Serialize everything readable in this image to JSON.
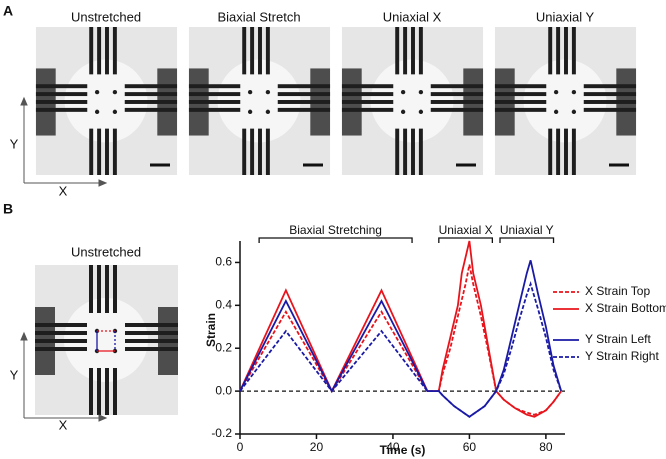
{
  "panel_a": {
    "label": "A",
    "titles": [
      "Unstretched",
      "Biaxial Stretch",
      "Uniaxial X",
      "Uniaxial Y"
    ],
    "axis_x": "X",
    "axis_y": "Y"
  },
  "panel_b": {
    "label": "B",
    "image_title": "Unstretched",
    "axis_x": "X",
    "axis_y": "Y"
  },
  "chart_data": {
    "type": "line",
    "xlabel": "Time (s)",
    "ylabel": "Strain",
    "xlim": [
      0,
      85
    ],
    "xticks": [
      0,
      20,
      40,
      60,
      80
    ],
    "ylim": [
      -0.2,
      0.7
    ],
    "yticks": [
      {
        "value": -0.2,
        "label": "-0.2"
      },
      {
        "value": 0,
        "label": "0.0"
      },
      0.2,
      0.4,
      0.6
    ],
    "reference_line": 0,
    "annotations": [
      {
        "text": "Biaxial Stretching",
        "range": [
          5,
          45
        ]
      },
      {
        "text": "Uniaxial X",
        "range": [
          52,
          66
        ]
      },
      {
        "text": "Uniaxial Y",
        "range": [
          68,
          82
        ]
      }
    ],
    "series": [
      {
        "name": "X Strain Top",
        "color": "#e8141c",
        "dash": true,
        "x": [
          0,
          12,
          24,
          37,
          49,
          52,
          53,
          55,
          57,
          59,
          60,
          61,
          63,
          65,
          67,
          69,
          72,
          75,
          77,
          80,
          82,
          84
        ],
        "values": [
          0,
          0.37,
          0,
          0.37,
          0,
          0,
          0.08,
          0.2,
          0.35,
          0.5,
          0.59,
          0.5,
          0.35,
          0.18,
          0,
          -0.04,
          -0.08,
          -0.1,
          -0.11,
          -0.09,
          -0.05,
          0
        ]
      },
      {
        "name": "X Strain Bottom",
        "color": "#e8141c",
        "dash": false,
        "x": [
          0,
          12,
          24,
          37,
          49,
          52,
          53,
          55,
          57,
          58,
          60,
          61,
          63,
          65,
          67,
          69,
          72,
          75,
          77,
          80,
          82,
          84
        ],
        "values": [
          0,
          0.47,
          0,
          0.47,
          0,
          0,
          0.1,
          0.25,
          0.4,
          0.55,
          0.7,
          0.55,
          0.4,
          0.2,
          0,
          -0.04,
          -0.08,
          -0.11,
          -0.12,
          -0.09,
          -0.05,
          0
        ]
      },
      {
        "name": "Y Strain Left",
        "color": "#1a1aa6",
        "dash": false,
        "x": [
          0,
          12,
          24,
          37,
          49,
          52,
          53,
          56,
          60,
          64,
          67,
          69,
          71,
          73,
          75,
          76,
          78,
          80,
          82,
          84
        ],
        "values": [
          0,
          0.42,
          0,
          0.42,
          0,
          0,
          -0.02,
          -0.07,
          -0.12,
          -0.07,
          0,
          0.1,
          0.25,
          0.4,
          0.55,
          0.61,
          0.45,
          0.3,
          0.12,
          0
        ]
      },
      {
        "name": "Y Strain Right",
        "color": "#1a1aa6",
        "dash": true,
        "x": [
          0,
          12,
          24,
          37,
          49,
          52,
          53,
          56,
          60,
          64,
          67,
          69,
          71,
          73,
          75,
          76,
          78,
          80,
          82,
          84
        ],
        "values": [
          0,
          0.28,
          0,
          0.28,
          0,
          0,
          -0.02,
          -0.07,
          -0.12,
          -0.07,
          0,
          0.08,
          0.2,
          0.33,
          0.45,
          0.5,
          0.38,
          0.25,
          0.1,
          0
        ]
      }
    ]
  }
}
